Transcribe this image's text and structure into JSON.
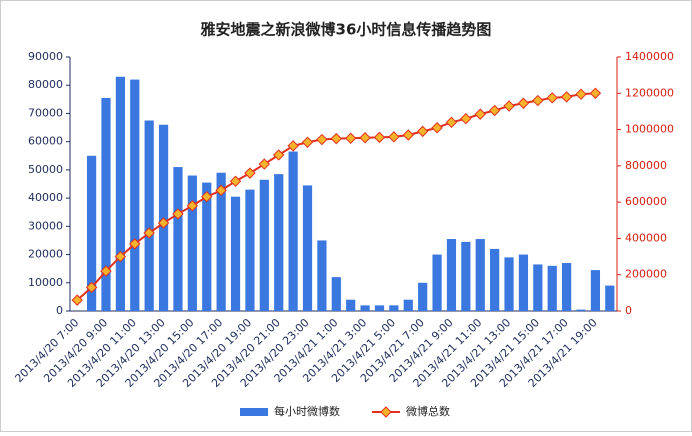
{
  "chart_data": {
    "type": "combo",
    "title": "雅安地震之新浪微博36小时信息传播趋势图",
    "categories": [
      "2013/4/20 7:00",
      null,
      "2013/4/20 9:00",
      null,
      "2013/4/20 11:00",
      null,
      "2013/4/20 13:00",
      null,
      "2013/4/20 15:00",
      null,
      "2013/4/20 17:00",
      null,
      "2013/4/20 19:00",
      null,
      "2013/4/20 21:00",
      null,
      "2013/4/20 23:00",
      null,
      "2013/4/21 1:00",
      null,
      "2013/4/21 3:00",
      null,
      "2013/4/21 5:00",
      null,
      "2013/4/21 7:00",
      null,
      "2013/4/21 9:00",
      null,
      "2013/4/21 11:00",
      null,
      "2013/4/21 13:00",
      null,
      "2013/4/21 15:00",
      null,
      "2013/4/21 17:00",
      null,
      "2013/4/21 19:00",
      null
    ],
    "series": [
      {
        "name": "每小时微博数",
        "type": "bar",
        "color": "#3a78e0",
        "values": [
          null,
          55000,
          75500,
          83000,
          82000,
          67500,
          66000,
          51000,
          48000,
          45500,
          49000,
          40500,
          43000,
          46500,
          48500,
          56500,
          44500,
          25000,
          12000,
          4000,
          2000,
          2000,
          2000,
          4000,
          10000,
          20000,
          25500,
          24500,
          25500,
          22000,
          19000,
          20000,
          16500,
          16000,
          17000,
          500,
          14500,
          9000
        ]
      },
      {
        "name": "微博总数",
        "type": "line",
        "axis": "y2",
        "color": "#e0301e",
        "marker_color": "#f7b32b",
        "values": [
          60000,
          130000,
          220000,
          300000,
          370000,
          430000,
          485000,
          535000,
          580000,
          630000,
          665000,
          715000,
          760000,
          810000,
          860000,
          910000,
          930000,
          945000,
          950000,
          952000,
          955000,
          957000,
          960000,
          970000,
          990000,
          1010000,
          1040000,
          1060000,
          1085000,
          1105000,
          1130000,
          1145000,
          1160000,
          1175000,
          1180000,
          1195000,
          1200000,
          null
        ]
      }
    ],
    "ylim": [
      0,
      90000
    ],
    "yticks": [
      0,
      10000,
      20000,
      30000,
      40000,
      50000,
      60000,
      70000,
      80000,
      90000
    ],
    "y2lim": [
      0,
      1400000
    ],
    "y2ticks": [
      0,
      200000,
      400000,
      600000,
      800000,
      1000000,
      1200000,
      1400000
    ],
    "ycolor": "#1f2d5c",
    "y2color": "#d42010",
    "legend": "bottom"
  }
}
